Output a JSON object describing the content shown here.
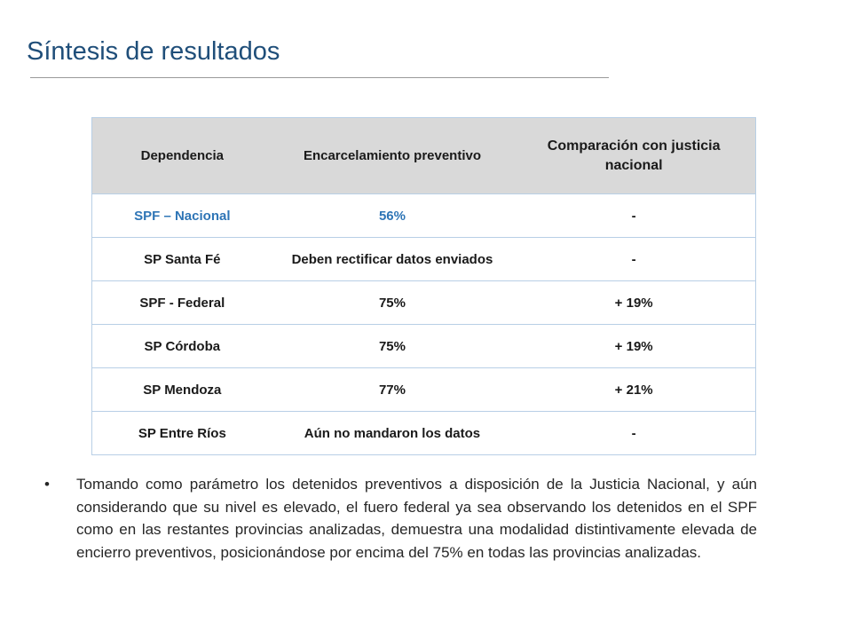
{
  "slide": {
    "title": "Síntesis de resultados"
  },
  "table": {
    "headers": [
      "Dependencia",
      "Encarcelamiento preventivo",
      "Comparación con justicia nacional"
    ],
    "rows": [
      [
        "SPF – Nacional",
        "56%",
        "-"
      ],
      [
        "SP Santa Fé",
        "Deben rectificar datos enviados",
        "-"
      ],
      [
        "SPF - Federal",
        "75%",
        "+ 19%"
      ],
      [
        "SP Córdoba",
        "75%",
        "+ 19%"
      ],
      [
        "SP Mendoza",
        "77%",
        "+ 21%"
      ],
      [
        "SP Entre Ríos",
        "Aún no mandaron los datos",
        "-"
      ]
    ],
    "highlight_color": "#2e75b6",
    "header_background": "#d9d9d9",
    "border_color": "#b8cfe6"
  },
  "bullets": [
    {
      "mark": "•",
      "text": "Tomando como parámetro los detenidos preventivos a disposición de la Justicia Nacional, y aún considerando que su nivel es elevado, el fuero federal ya sea observando los detenidos en el SPF como en las restantes provincias analizadas, demuestra una modalidad distintivamente elevada de encierro preventivos, posicionándose por encima del 75% en todas las provincias analizadas."
    }
  ]
}
